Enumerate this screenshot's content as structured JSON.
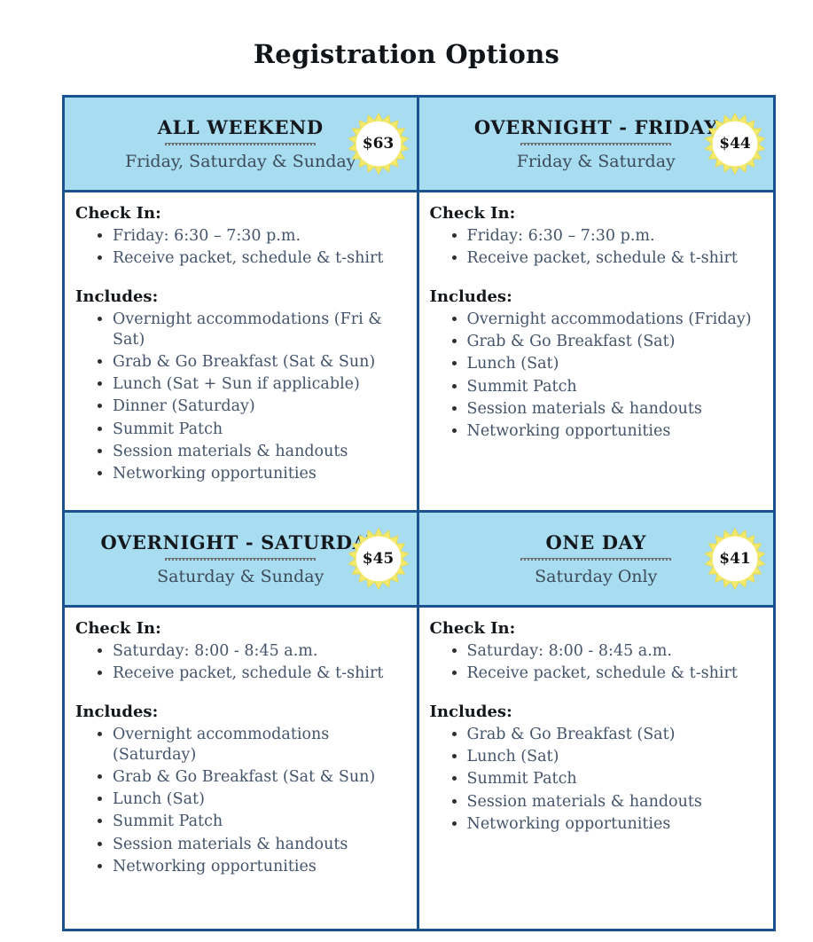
{
  "page": {
    "title": "Registration Options"
  },
  "labels": {
    "check_in": "Check In:",
    "includes": "Includes:"
  },
  "colors": {
    "header_background": "#a8ddf1",
    "border_navy": "#1a5390",
    "body_text_slate": "#44546a",
    "heading_text": "#14181c",
    "badge_yellow": "#f2e96e",
    "badge_center": "#ffffff"
  },
  "cards": [
    {
      "title": "ALL WEEKEND",
      "subtitle": "Friday, Saturday & Sunday",
      "price": "$63",
      "check_in": [
        "Friday: 6:30 – 7:30 p.m.",
        "Receive packet, schedule & t-shirt"
      ],
      "includes": [
        "Overnight accommodations (Fri & Sat)",
        "Grab & Go Breakfast (Sat & Sun)",
        "Lunch (Sat + Sun if applicable)",
        "Dinner (Saturday)",
        "Summit Patch",
        "Session materials & handouts",
        "Networking opportunities"
      ]
    },
    {
      "title": "OVERNIGHT - FRIDAY",
      "subtitle": "Friday & Saturday",
      "price": "$44",
      "check_in": [
        "Friday: 6:30 – 7:30 p.m.",
        "Receive packet, schedule & t-shirt"
      ],
      "includes": [
        "Overnight accommodations (Friday)",
        "Grab & Go Breakfast (Sat)",
        "Lunch (Sat)",
        "Summit Patch",
        "Session materials & handouts",
        "Networking opportunities"
      ]
    },
    {
      "title": "OVERNIGHT - SATURDAY",
      "subtitle": "Saturday & Sunday",
      "price": "$45",
      "check_in": [
        "Saturday: 8:00 - 8:45 a.m.",
        "Receive packet, schedule & t-shirt"
      ],
      "includes": [
        "Overnight accommodations (Saturday)",
        "Grab & Go Breakfast (Sat & Sun)",
        "Lunch (Sat)",
        "Summit Patch",
        "Session materials & handouts",
        "Networking opportunities"
      ]
    },
    {
      "title": "ONE DAY",
      "subtitle": "Saturday Only",
      "price": "$41",
      "check_in": [
        "Saturday: 8:00 - 8:45 a.m.",
        "Receive packet, schedule & t-shirt"
      ],
      "includes": [
        "Grab & Go Breakfast (Sat)",
        "Lunch (Sat)",
        "Summit Patch",
        "Session materials & handouts",
        "Networking opportunities"
      ]
    }
  ]
}
